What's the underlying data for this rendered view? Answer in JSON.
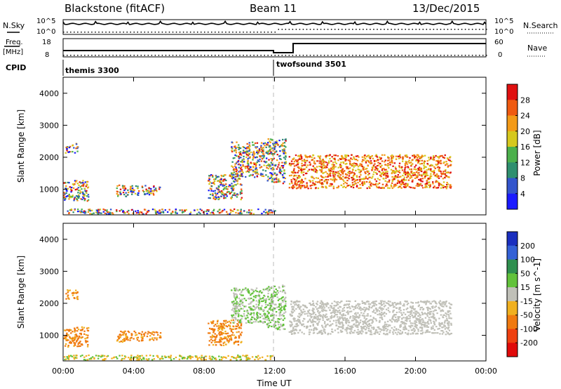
{
  "header": {
    "title": "Blackstone (fitACF)",
    "beam": "Beam 11",
    "date": "13/Dec/2015"
  },
  "top_panels": {
    "nsky_label": "N.Sky",
    "nsearch_label": "N.Search",
    "nsky_ticks": [
      "10^5",
      "10^0"
    ],
    "nsearch_ticks": [
      "10^5",
      "10^0"
    ],
    "freq_label": [
      "Freq.",
      "[MHz]"
    ],
    "freq_ticks": [
      "18",
      "8"
    ],
    "nave_label": "Nave",
    "nave_ticks": [
      "60",
      "0"
    ],
    "cpid_label": "CPID",
    "cpid_entries": [
      {
        "label": "themis 3300",
        "start_hour": 0
      },
      {
        "label": "twofsound 3501",
        "start_hour": 12.0
      }
    ]
  },
  "chart_data": [
    {
      "type": "heatmap",
      "ylabel": "Slant Range [km]",
      "xlabel": "Time UT",
      "xlim": [
        0,
        24
      ],
      "ylim": [
        200,
        4500
      ],
      "x_ticks": [
        "00:00",
        "04:00",
        "08:00",
        "12:00",
        "16:00",
        "20:00",
        "00:00"
      ],
      "y_ticks": [
        1000,
        2000,
        3000,
        4000
      ],
      "colorbar": {
        "label": "Power [dB]",
        "ticks": [
          "4",
          "8",
          "12",
          "16",
          "20",
          "24",
          "28"
        ],
        "colors": [
          "#1a1aff",
          "#3355cc",
          "#2f8f6f",
          "#4cb04c",
          "#d6c81e",
          "#f39a17",
          "#ef5a10",
          "#e01010"
        ]
      }
    },
    {
      "type": "heatmap",
      "ylabel": "Slant Range [km]",
      "xlabel": "Time UT",
      "xlim": [
        0,
        24
      ],
      "ylim": [
        200,
        4500
      ],
      "x_ticks": [
        "00:00",
        "04:00",
        "08:00",
        "12:00",
        "16:00",
        "20:00",
        "00:00"
      ],
      "y_ticks": [
        1000,
        2000,
        3000,
        4000
      ],
      "colorbar": {
        "label": "Velocity [m s^-1]",
        "ticks": [
          "200",
          "100",
          "50",
          "15",
          "-15",
          "-50",
          "-100",
          "-200"
        ],
        "colors": [
          "#1a2fbf",
          "#3461d6",
          "#2f8f4f",
          "#62c23a",
          "#c0c0b8",
          "#f0b020",
          "#f07a10",
          "#ef4010",
          "#e00a0a"
        ]
      }
    }
  ]
}
